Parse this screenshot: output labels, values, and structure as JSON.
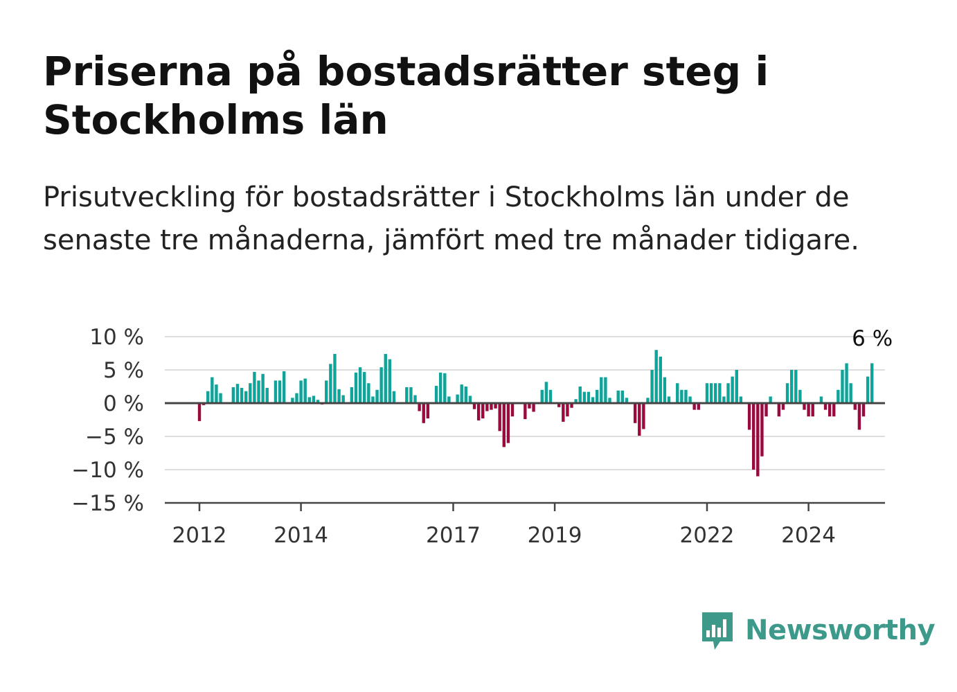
{
  "title": "Priserna på bostadsrätter steg i Stockholms län",
  "subtitle": "Prisutveckling för bostadsrätter i Stockholms län under de senaste tre månaderna, jämfört med tre månader tidigare.",
  "brand": {
    "name": "Newsworthy",
    "icon": "newsworthy-logo-icon",
    "color": "#3d9a8b"
  },
  "chart_data": {
    "type": "bar",
    "ylim": [
      -15,
      10
    ],
    "y_ticks": [
      10,
      5,
      0,
      -5,
      -10,
      -15
    ],
    "y_tick_labels": [
      "10 %",
      "5 %",
      "0 %",
      "−5 %",
      "−10 %",
      "−15 %"
    ],
    "x_ticks": [
      2012,
      2014,
      2017,
      2019,
      2022,
      2024
    ],
    "x_tick_labels": [
      "2012",
      "2014",
      "2017",
      "2019",
      "2022",
      "2024"
    ],
    "grid": true,
    "colors": {
      "positive": "#0fa399",
      "negative": "#9b0a3f",
      "grid": "#dddddd",
      "zero_line": "#444444"
    },
    "annotation": {
      "label": "6 %",
      "value": 6
    },
    "start": "2012-01",
    "interval": "month",
    "values": [
      -2.7,
      -0.3,
      1.8,
      3.9,
      2.8,
      1.5,
      0,
      0,
      2.4,
      2.9,
      2.3,
      1.8,
      3.0,
      4.7,
      3.4,
      4.4,
      2.3,
      0,
      3.4,
      3.4,
      4.8,
      0,
      0.8,
      1.5,
      3.4,
      3.7,
      0.9,
      1.1,
      0.5,
      -0.2,
      3.4,
      5.9,
      7.4,
      2.1,
      1.2,
      0,
      2.4,
      4.6,
      5.4,
      4.7,
      3.0,
      1.0,
      2.0,
      5.4,
      7.4,
      6.6,
      1.8,
      0,
      0,
      2.4,
      2.4,
      1.2,
      -1.2,
      -3.0,
      -2.3,
      0,
      2.6,
      4.6,
      4.5,
      1.0,
      0,
      1.3,
      2.8,
      2.5,
      1.1,
      -0.9,
      -2.6,
      -2.3,
      -1.2,
      -1.0,
      -0.8,
      -4.2,
      -6.6,
      -6.0,
      -2.0,
      0,
      0,
      -2.4,
      -0.8,
      -1.3,
      0,
      2.0,
      3.2,
      2.0,
      0,
      -0.6,
      -2.8,
      -2.0,
      -0.7,
      0.6,
      2.5,
      1.7,
      1.7,
      0.9,
      2.0,
      3.9,
      3.9,
      0.8,
      0,
      1.9,
      1.9,
      0.8,
      0,
      -3.0,
      -4.9,
      -3.9,
      0.8,
      5.0,
      8.0,
      7.0,
      3.9,
      1.0,
      0,
      3.0,
      2.0,
      2.0,
      1.0,
      -1.0,
      -1.0,
      0,
      3.0,
      3.0,
      3.0,
      3.0,
      1.0,
      3.0,
      4.0,
      5.0,
      1.0,
      0,
      -4.0,
      -10.0,
      -11.0,
      -8.0,
      -2.0,
      1.0,
      0,
      -2.0,
      -1.0,
      3.0,
      5.0,
      5.0,
      2.0,
      -1.0,
      -2.0,
      -2.0,
      0,
      1.0,
      -1.0,
      -2.0,
      -2.0,
      2.0,
      5.0,
      6.0,
      3.0,
      -1.0,
      -4.0,
      -2.0,
      4.0,
      6.0
    ]
  }
}
